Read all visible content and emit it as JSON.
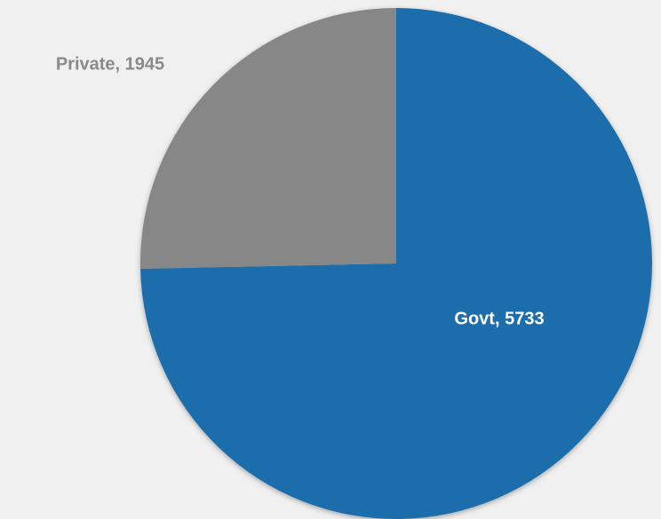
{
  "chart_data": {
    "type": "pie",
    "categories": [
      "Govt",
      "Private"
    ],
    "values": [
      5733,
      1945
    ],
    "value_labels": [
      "Govt, 5733",
      "Private, 1945"
    ],
    "colors": [
      "#1f6dab",
      "#878787"
    ],
    "label_colors": [
      "#ffffff",
      "#8a8a8a"
    ]
  }
}
